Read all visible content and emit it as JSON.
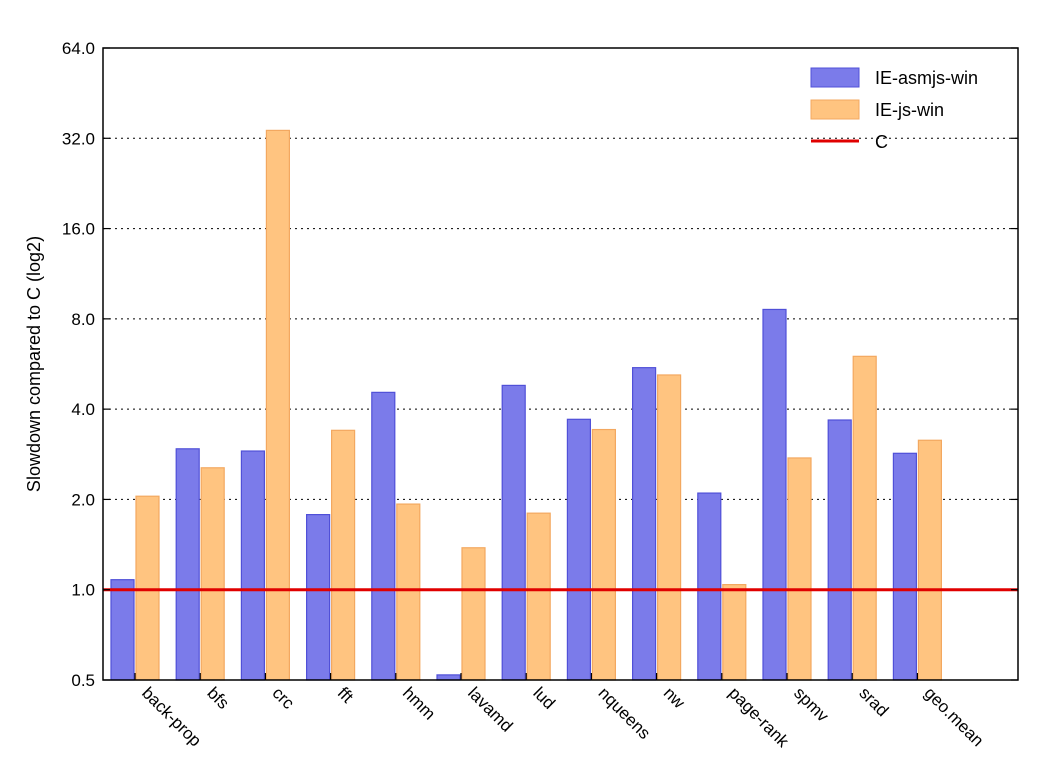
{
  "chart_data": {
    "type": "bar",
    "categories": [
      "back-prop",
      "bfs",
      "crc",
      "fft",
      "hmm",
      "lavamd",
      "lud",
      "nqueens",
      "nw",
      "page-rank",
      "spmv",
      "srad",
      "geo.mean"
    ],
    "series": [
      {
        "name": "IE-asmjs-win",
        "color": "#7b7bea",
        "edge": "#5050d8",
        "values": [
          1.08,
          2.95,
          2.9,
          1.78,
          4.55,
          0.52,
          4.8,
          3.7,
          5.5,
          2.1,
          8.6,
          3.68,
          2.85
        ]
      },
      {
        "name": "IE-js-win",
        "color": "#ffc480",
        "edge": "#f3a860",
        "values": [
          2.05,
          2.55,
          34.0,
          3.4,
          1.93,
          1.38,
          1.8,
          3.42,
          5.2,
          1.04,
          2.75,
          6.0,
          3.15
        ]
      }
    ],
    "reference_line": {
      "name": "C",
      "value": 1.0,
      "color": "#e00000"
    },
    "ylabel": "Slowdown compared to C (log2)",
    "xlabel": "",
    "yscale": "log2",
    "ylim": [
      0.5,
      64.0
    ],
    "yticks": [
      "0.5",
      "1.0",
      "2.0",
      "4.0",
      "8.0",
      "16.0",
      "32.0",
      "64.0"
    ],
    "grid": "horizontal dotted",
    "legend_position": "top-right"
  }
}
